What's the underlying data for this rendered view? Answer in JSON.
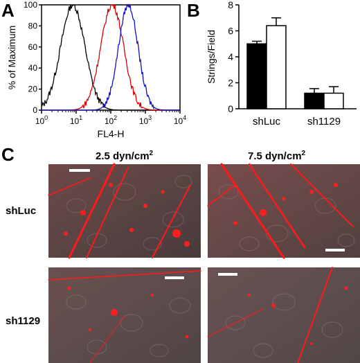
{
  "panels": {
    "a": {
      "letter": "A"
    },
    "b": {
      "letter": "B"
    },
    "c": {
      "letter": "C"
    }
  },
  "chart_data": [
    {
      "type": "line",
      "panel": "A",
      "title": "",
      "xlabel": "FL4-H",
      "ylabel": "% of Maximum",
      "x_scale": "log",
      "xlim": [
        1,
        10000
      ],
      "ylim": [
        0,
        100
      ],
      "x_ticks": [
        1,
        10,
        100,
        1000,
        10000
      ],
      "x_tick_labels": [
        {
          "base": "10",
          "exp": "0"
        },
        {
          "base": "10",
          "exp": "1"
        },
        {
          "base": "10",
          "exp": "2"
        },
        {
          "base": "10",
          "exp": "3"
        },
        {
          "base": "10",
          "exp": "4"
        }
      ],
      "y_ticks": [
        0,
        20,
        40,
        60,
        80,
        100
      ],
      "y_tick_labels": [
        "0",
        "20",
        "40",
        "60",
        "80",
        "100"
      ],
      "series": [
        {
          "color": "#000000",
          "peak_x": 8,
          "spread_decades": 0.35,
          "peak_y": 100
        },
        {
          "color": "#e00000",
          "peak_x": 110,
          "spread_decades": 0.33,
          "peak_y": 100
        },
        {
          "color": "#1010c0",
          "peak_x": 320,
          "spread_decades": 0.28,
          "peak_y": 100
        }
      ]
    },
    {
      "type": "bar",
      "panel": "B",
      "title": "",
      "xlabel": "",
      "ylabel": "Strings/Field",
      "categories": [
        "shLuc",
        "sh1129"
      ],
      "ylim": [
        0,
        8
      ],
      "y_ticks": [
        0,
        2,
        4,
        6,
        8
      ],
      "y_tick_labels": [
        "0",
        "2",
        "4",
        "6",
        "8"
      ],
      "series": [
        {
          "fill": "#000000",
          "values": [
            5.0,
            1.2
          ],
          "errors": [
            0.2,
            0.35
          ]
        },
        {
          "fill": "#ffffff",
          "values": [
            6.4,
            1.2
          ],
          "errors": [
            0.6,
            0.5
          ]
        }
      ]
    }
  ],
  "panel_c": {
    "columns": [
      {
        "prefix": "2.5 dyn/cm",
        "sup": "2"
      },
      {
        "prefix": "7.5 dyn/cm",
        "sup": "2"
      }
    ],
    "rows": [
      "shLuc",
      "sh1129"
    ]
  }
}
